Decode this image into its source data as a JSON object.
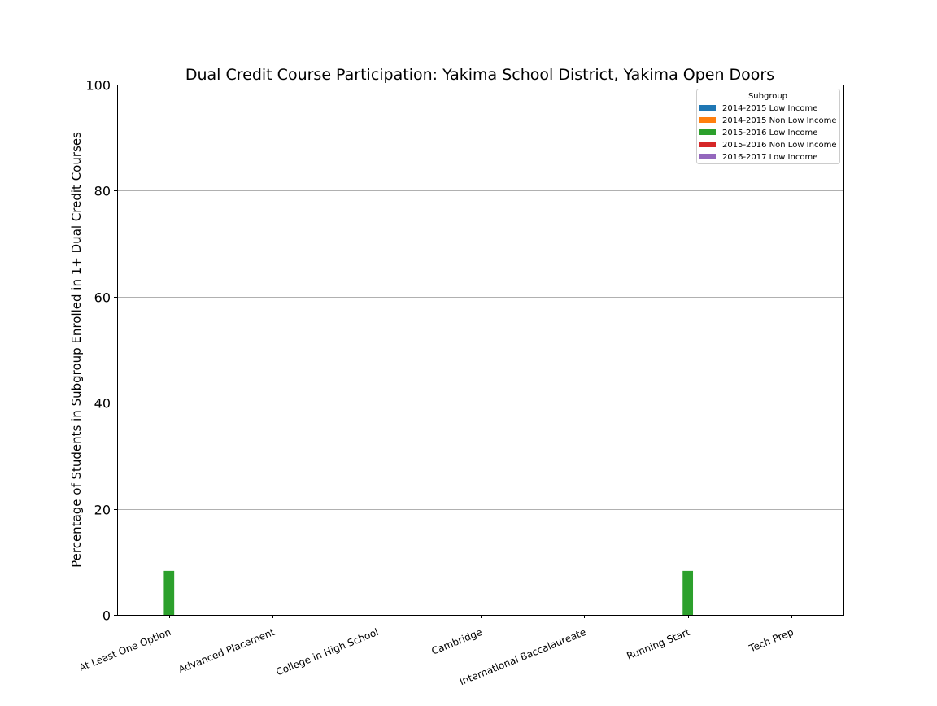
{
  "chart_data": {
    "type": "bar",
    "title": "Dual Credit Course Participation: Yakima School District, Yakima Open Doors",
    "xlabel": "",
    "ylabel": "Percentage of Students in Subgroup Enrolled in 1+ Dual Credit Courses",
    "ylim": [
      0,
      100
    ],
    "yticks": [
      0,
      20,
      40,
      60,
      80,
      100
    ],
    "grid": "horizontal",
    "legend": {
      "title": "Subgroup",
      "placement": "top-right"
    },
    "categories": [
      "At Least One Option",
      "Advanced Placement",
      "College in High School",
      "Cambridge",
      "International Baccalaureate",
      "Running Start",
      "Tech Prep"
    ],
    "series": [
      {
        "name": "2014-2015 Low Income",
        "color": "#1f77b4",
        "values": [
          0,
          0,
          0,
          0,
          0,
          0,
          0
        ]
      },
      {
        "name": "2014-2015 Non Low Income",
        "color": "#ff7f0e",
        "values": [
          0,
          0,
          0,
          0,
          0,
          0,
          0
        ]
      },
      {
        "name": "2015-2016 Low Income",
        "color": "#2ca02c",
        "values": [
          8.3,
          0,
          0,
          0,
          0,
          8.3,
          0
        ]
      },
      {
        "name": "2015-2016 Non Low Income",
        "color": "#d62728",
        "values": [
          0,
          0,
          0,
          0,
          0,
          0,
          0
        ]
      },
      {
        "name": "2016-2017 Low Income",
        "color": "#9467bd",
        "values": [
          0,
          0,
          0,
          0,
          0,
          0,
          0
        ]
      }
    ]
  }
}
